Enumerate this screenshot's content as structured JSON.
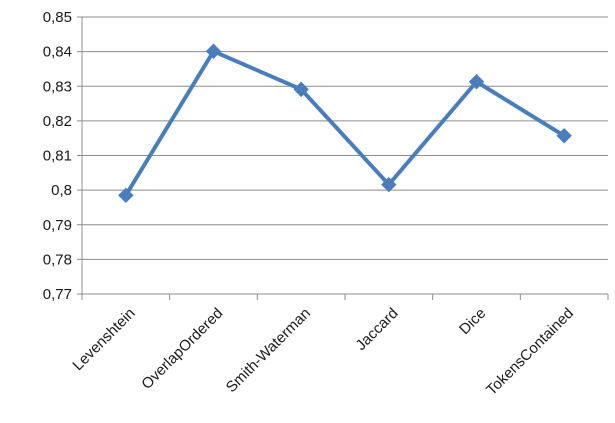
{
  "chart_data": {
    "type": "line",
    "title": "",
    "xlabel": "",
    "ylabel": "",
    "categories": [
      "Levenshtein",
      "OverlapOrdered",
      "Smith-Waterman",
      "Jaccard",
      "Dice",
      "TokensContained"
    ],
    "series": [
      {
        "values": [
          0.7985,
          0.8401,
          0.8291,
          0.8016,
          0.8313,
          0.8157
        ],
        "color": "#4a7ebb"
      }
    ],
    "ylim": [
      0.77,
      0.85
    ],
    "yticks": [
      0.77,
      0.78,
      0.79,
      0.8,
      0.81,
      0.82,
      0.83,
      0.84,
      0.85
    ],
    "ytick_labels": [
      "0,77",
      "0,78",
      "0,79",
      "0,8",
      "0,81",
      "0,82",
      "0,83",
      "0,84",
      "0,85"
    ],
    "grid": "horizontal",
    "legend": "none",
    "colors": {
      "line": "#4a7ebb",
      "grid": "#8c8c8c",
      "axis": "#8c8c8c",
      "text": "#1a1a1a"
    }
  }
}
